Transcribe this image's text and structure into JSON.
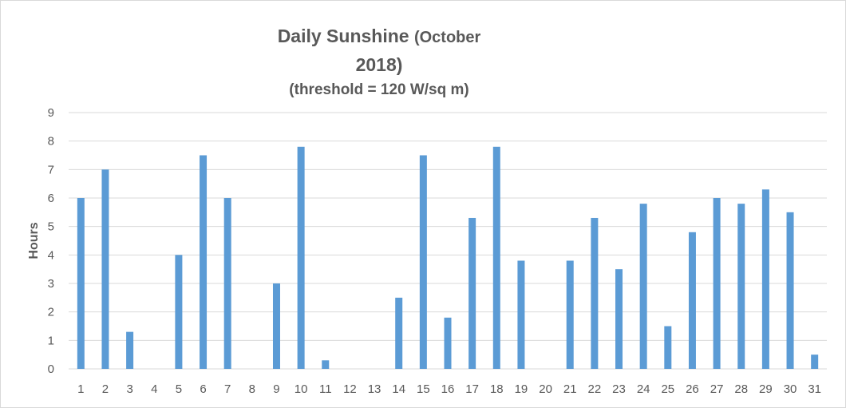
{
  "chart_data": {
    "type": "bar",
    "title_main": "Daily Sunshine",
    "title_paren": "(October",
    "title_line2": "2018)",
    "subtitle": "(threshold = 120 W/sq m)",
    "xlabel": "",
    "ylabel": "Hours",
    "ylim": [
      0,
      9
    ],
    "yticks": [
      "0",
      "1",
      "2",
      "3",
      "4",
      "5",
      "6",
      "7",
      "8",
      "9"
    ],
    "grid": true,
    "legend": "none",
    "bar_color": "#5b9bd5",
    "grid_color": "#d9d9d9",
    "categories": [
      "1",
      "2",
      "3",
      "4",
      "5",
      "6",
      "7",
      "8",
      "9",
      "10",
      "11",
      "12",
      "13",
      "14",
      "15",
      "16",
      "17",
      "18",
      "19",
      "20",
      "21",
      "22",
      "23",
      "24",
      "25",
      "26",
      "27",
      "28",
      "29",
      "30",
      "31"
    ],
    "values": [
      6,
      7,
      1.3,
      0,
      4,
      7.5,
      6,
      0,
      3,
      7.8,
      0.3,
      0,
      0,
      2.5,
      7.5,
      1.8,
      5.3,
      7.8,
      3.8,
      0,
      3.8,
      5.3,
      3.5,
      5.8,
      1.5,
      4.8,
      6,
      5.8,
      6.3,
      5.5,
      0.5
    ]
  }
}
